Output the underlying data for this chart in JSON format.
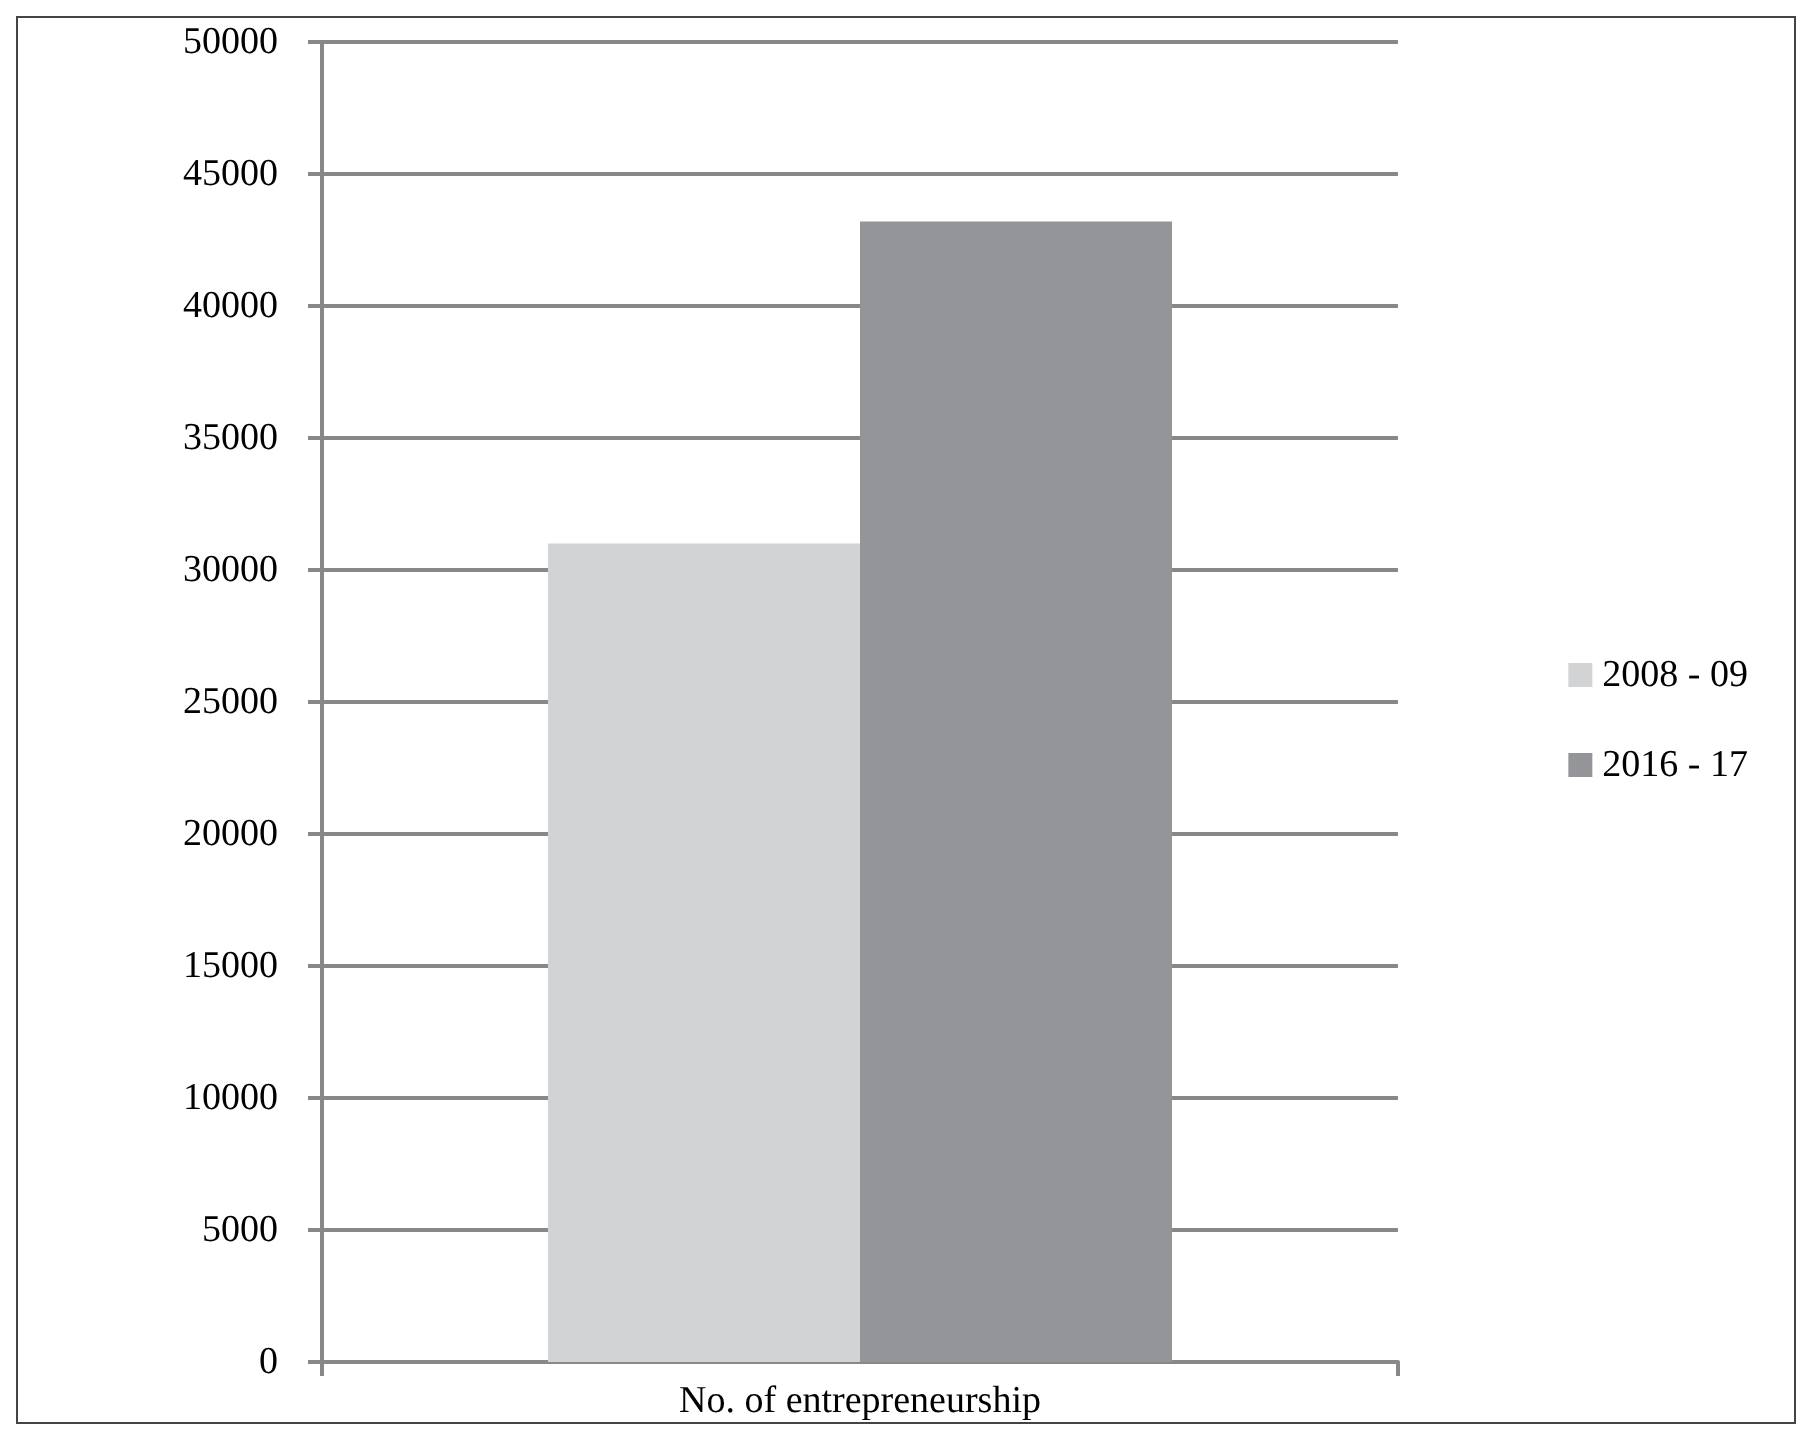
{
  "chart_data": {
    "type": "bar",
    "categories": [
      "No. of entrepreneurship"
    ],
    "series": [
      {
        "name": "2008 - 09",
        "color": "#d2d3d5",
        "values": [
          31000
        ]
      },
      {
        "name": "2016 - 17",
        "color": "#939598",
        "values": [
          43200
        ]
      }
    ],
    "ylim": [
      0,
      50000
    ],
    "yticks": [
      0,
      5000,
      10000,
      15000,
      20000,
      25000,
      30000,
      35000,
      40000,
      45000,
      50000
    ],
    "grid": "y",
    "legend": "right"
  }
}
